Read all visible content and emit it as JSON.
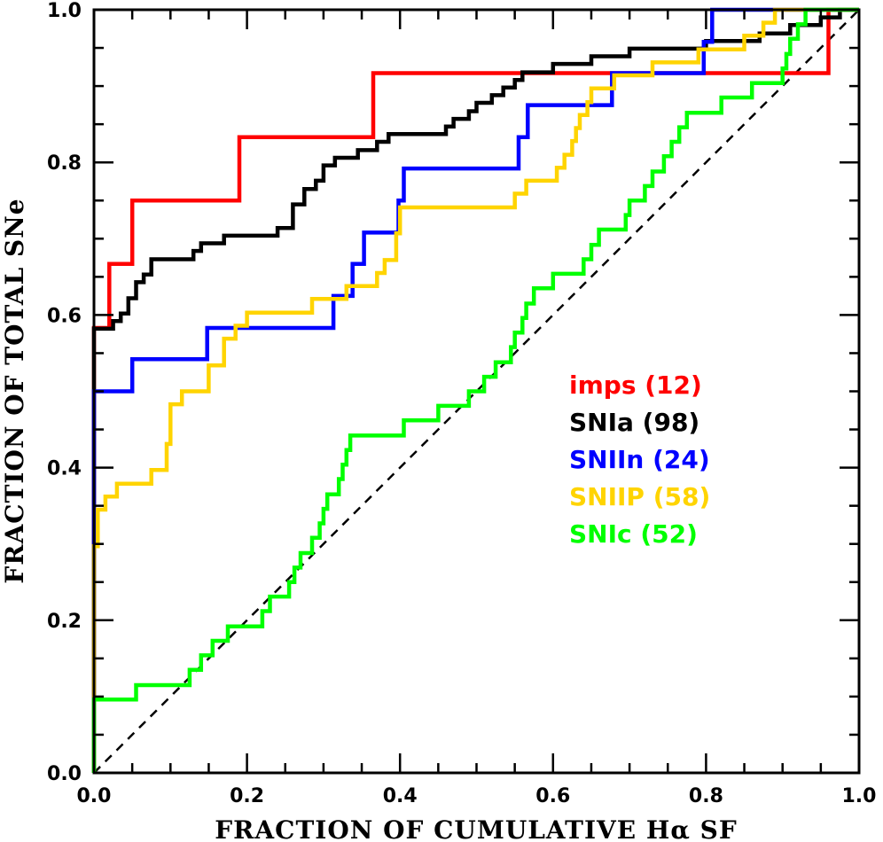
{
  "chart_data": {
    "type": "line",
    "title": "",
    "xlabel": "FRACTION OF CUMULATIVE Hα SF",
    "ylabel": "FRACTION OF TOTAL SNe",
    "xlim": [
      0,
      1
    ],
    "ylim": [
      0,
      1
    ],
    "x_ticks": [
      "0.0",
      "0.2",
      "0.4",
      "0.6",
      "0.8",
      "1.0"
    ],
    "y_ticks": [
      "0.0",
      "0.2",
      "0.4",
      "0.6",
      "0.8",
      "1.0"
    ],
    "grid": false,
    "legend_placement": "right",
    "reference_line": {
      "style": "dashed",
      "color": "#000000",
      "points": [
        [
          0,
          0
        ],
        [
          1,
          1
        ]
      ]
    },
    "series": [
      {
        "name": "imps (12)",
        "color": "#ff0000",
        "points": [
          [
            0,
            0
          ],
          [
            0,
            0.583
          ],
          [
            0.02,
            0.583
          ],
          [
            0.02,
            0.667
          ],
          [
            0.05,
            0.667
          ],
          [
            0.05,
            0.75
          ],
          [
            0.19,
            0.75
          ],
          [
            0.19,
            0.833
          ],
          [
            0.365,
            0.833
          ],
          [
            0.365,
            0.917
          ],
          [
            0.96,
            0.917
          ],
          [
            0.96,
            1.0
          ],
          [
            1.0,
            1.0
          ]
        ]
      },
      {
        "name": "SNIa (98)",
        "color": "#000000",
        "points": [
          [
            0,
            0
          ],
          [
            0,
            0.5
          ],
          [
            0,
            0.582
          ],
          [
            0.025,
            0.582
          ],
          [
            0.025,
            0.592
          ],
          [
            0.035,
            0.592
          ],
          [
            0.035,
            0.602
          ],
          [
            0.045,
            0.602
          ],
          [
            0.045,
            0.622
          ],
          [
            0.055,
            0.622
          ],
          [
            0.055,
            0.643
          ],
          [
            0.065,
            0.643
          ],
          [
            0.065,
            0.653
          ],
          [
            0.075,
            0.653
          ],
          [
            0.075,
            0.673
          ],
          [
            0.13,
            0.673
          ],
          [
            0.13,
            0.684
          ],
          [
            0.14,
            0.684
          ],
          [
            0.14,
            0.694
          ],
          [
            0.17,
            0.694
          ],
          [
            0.17,
            0.704
          ],
          [
            0.24,
            0.704
          ],
          [
            0.24,
            0.714
          ],
          [
            0.26,
            0.714
          ],
          [
            0.26,
            0.745
          ],
          [
            0.275,
            0.745
          ],
          [
            0.275,
            0.765
          ],
          [
            0.29,
            0.765
          ],
          [
            0.29,
            0.776
          ],
          [
            0.3,
            0.776
          ],
          [
            0.3,
            0.796
          ],
          [
            0.315,
            0.796
          ],
          [
            0.315,
            0.806
          ],
          [
            0.345,
            0.806
          ],
          [
            0.345,
            0.816
          ],
          [
            0.37,
            0.816
          ],
          [
            0.37,
            0.827
          ],
          [
            0.385,
            0.827
          ],
          [
            0.385,
            0.837
          ],
          [
            0.46,
            0.837
          ],
          [
            0.46,
            0.847
          ],
          [
            0.47,
            0.847
          ],
          [
            0.47,
            0.857
          ],
          [
            0.49,
            0.857
          ],
          [
            0.49,
            0.867
          ],
          [
            0.5,
            0.867
          ],
          [
            0.5,
            0.878
          ],
          [
            0.52,
            0.878
          ],
          [
            0.52,
            0.888
          ],
          [
            0.535,
            0.888
          ],
          [
            0.535,
            0.898
          ],
          [
            0.55,
            0.898
          ],
          [
            0.55,
            0.908
          ],
          [
            0.56,
            0.908
          ],
          [
            0.56,
            0.918
          ],
          [
            0.6,
            0.918
          ],
          [
            0.6,
            0.929
          ],
          [
            0.65,
            0.929
          ],
          [
            0.65,
            0.939
          ],
          [
            0.7,
            0.939
          ],
          [
            0.7,
            0.949
          ],
          [
            0.8,
            0.949
          ],
          [
            0.8,
            0.959
          ],
          [
            0.87,
            0.959
          ],
          [
            0.87,
            0.969
          ],
          [
            0.91,
            0.969
          ],
          [
            0.91,
            0.98
          ],
          [
            0.95,
            0.98
          ],
          [
            0.95,
            0.99
          ],
          [
            0.975,
            0.99
          ],
          [
            0.975,
            1.0
          ],
          [
            1.0,
            1.0
          ]
        ]
      },
      {
        "name": "SNIIn (24)",
        "color": "#0000ff",
        "points": [
          [
            0,
            0
          ],
          [
            0,
            0.3
          ],
          [
            0,
            0.5
          ],
          [
            0.05,
            0.5
          ],
          [
            0.05,
            0.542
          ],
          [
            0.148,
            0.542
          ],
          [
            0.148,
            0.583
          ],
          [
            0.313,
            0.583
          ],
          [
            0.313,
            0.625
          ],
          [
            0.338,
            0.625
          ],
          [
            0.338,
            0.667
          ],
          [
            0.353,
            0.667
          ],
          [
            0.353,
            0.708
          ],
          [
            0.398,
            0.708
          ],
          [
            0.398,
            0.75
          ],
          [
            0.405,
            0.75
          ],
          [
            0.405,
            0.792
          ],
          [
            0.555,
            0.792
          ],
          [
            0.555,
            0.833
          ],
          [
            0.567,
            0.833
          ],
          [
            0.567,
            0.875
          ],
          [
            0.677,
            0.875
          ],
          [
            0.677,
            0.917
          ],
          [
            0.797,
            0.917
          ],
          [
            0.797,
            0.958
          ],
          [
            0.808,
            0.958
          ],
          [
            0.808,
            1.0
          ],
          [
            1.0,
            1.0
          ]
        ]
      },
      {
        "name": "SNIIP (58)",
        "color": "#ffd400",
        "points": [
          [
            0,
            0
          ],
          [
            0,
            0.1
          ],
          [
            0,
            0.297
          ],
          [
            0.005,
            0.297
          ],
          [
            0.005,
            0.345
          ],
          [
            0.015,
            0.345
          ],
          [
            0.015,
            0.362
          ],
          [
            0.03,
            0.362
          ],
          [
            0.03,
            0.379
          ],
          [
            0.075,
            0.379
          ],
          [
            0.075,
            0.397
          ],
          [
            0.095,
            0.397
          ],
          [
            0.095,
            0.431
          ],
          [
            0.1,
            0.431
          ],
          [
            0.1,
            0.483
          ],
          [
            0.115,
            0.483
          ],
          [
            0.115,
            0.5
          ],
          [
            0.15,
            0.5
          ],
          [
            0.15,
            0.534
          ],
          [
            0.17,
            0.534
          ],
          [
            0.17,
            0.569
          ],
          [
            0.185,
            0.569
          ],
          [
            0.185,
            0.586
          ],
          [
            0.2,
            0.586
          ],
          [
            0.2,
            0.603
          ],
          [
            0.285,
            0.603
          ],
          [
            0.285,
            0.621
          ],
          [
            0.33,
            0.621
          ],
          [
            0.33,
            0.638
          ],
          [
            0.37,
            0.638
          ],
          [
            0.37,
            0.655
          ],
          [
            0.38,
            0.655
          ],
          [
            0.38,
            0.672
          ],
          [
            0.395,
            0.672
          ],
          [
            0.395,
            0.707
          ],
          [
            0.4,
            0.707
          ],
          [
            0.4,
            0.741
          ],
          [
            0.55,
            0.741
          ],
          [
            0.55,
            0.759
          ],
          [
            0.565,
            0.759
          ],
          [
            0.565,
            0.776
          ],
          [
            0.605,
            0.776
          ],
          [
            0.605,
            0.793
          ],
          [
            0.615,
            0.793
          ],
          [
            0.615,
            0.81
          ],
          [
            0.625,
            0.81
          ],
          [
            0.625,
            0.828
          ],
          [
            0.63,
            0.828
          ],
          [
            0.63,
            0.845
          ],
          [
            0.635,
            0.845
          ],
          [
            0.635,
            0.862
          ],
          [
            0.645,
            0.862
          ],
          [
            0.645,
            0.879
          ],
          [
            0.65,
            0.879
          ],
          [
            0.65,
            0.897
          ],
          [
            0.68,
            0.897
          ],
          [
            0.68,
            0.914
          ],
          [
            0.73,
            0.914
          ],
          [
            0.73,
            0.931
          ],
          [
            0.79,
            0.931
          ],
          [
            0.79,
            0.948
          ],
          [
            0.85,
            0.948
          ],
          [
            0.85,
            0.966
          ],
          [
            0.875,
            0.966
          ],
          [
            0.875,
            0.983
          ],
          [
            0.89,
            0.983
          ],
          [
            0.89,
            1.0
          ],
          [
            1.0,
            1.0
          ]
        ]
      },
      {
        "name": "SNIc (52)",
        "color": "#00ff00",
        "points": [
          [
            0,
            0
          ],
          [
            0,
            0.096
          ],
          [
            0.055,
            0.096
          ],
          [
            0.055,
            0.115
          ],
          [
            0.125,
            0.115
          ],
          [
            0.125,
            0.135
          ],
          [
            0.14,
            0.135
          ],
          [
            0.14,
            0.154
          ],
          [
            0.155,
            0.154
          ],
          [
            0.155,
            0.173
          ],
          [
            0.175,
            0.173
          ],
          [
            0.175,
            0.192
          ],
          [
            0.22,
            0.192
          ],
          [
            0.22,
            0.212
          ],
          [
            0.23,
            0.212
          ],
          [
            0.23,
            0.231
          ],
          [
            0.255,
            0.231
          ],
          [
            0.255,
            0.25
          ],
          [
            0.262,
            0.25
          ],
          [
            0.262,
            0.269
          ],
          [
            0.27,
            0.269
          ],
          [
            0.27,
            0.288
          ],
          [
            0.285,
            0.288
          ],
          [
            0.285,
            0.308
          ],
          [
            0.295,
            0.308
          ],
          [
            0.295,
            0.327
          ],
          [
            0.3,
            0.327
          ],
          [
            0.3,
            0.346
          ],
          [
            0.305,
            0.346
          ],
          [
            0.305,
            0.365
          ],
          [
            0.32,
            0.365
          ],
          [
            0.32,
            0.385
          ],
          [
            0.325,
            0.385
          ],
          [
            0.325,
            0.404
          ],
          [
            0.33,
            0.404
          ],
          [
            0.33,
            0.423
          ],
          [
            0.335,
            0.423
          ],
          [
            0.335,
            0.442
          ],
          [
            0.405,
            0.442
          ],
          [
            0.405,
            0.462
          ],
          [
            0.45,
            0.462
          ],
          [
            0.45,
            0.481
          ],
          [
            0.49,
            0.481
          ],
          [
            0.49,
            0.5
          ],
          [
            0.51,
            0.5
          ],
          [
            0.51,
            0.519
          ],
          [
            0.525,
            0.519
          ],
          [
            0.525,
            0.538
          ],
          [
            0.545,
            0.538
          ],
          [
            0.545,
            0.558
          ],
          [
            0.55,
            0.558
          ],
          [
            0.55,
            0.577
          ],
          [
            0.56,
            0.577
          ],
          [
            0.56,
            0.596
          ],
          [
            0.565,
            0.596
          ],
          [
            0.565,
            0.615
          ],
          [
            0.575,
            0.615
          ],
          [
            0.575,
            0.635
          ],
          [
            0.6,
            0.635
          ],
          [
            0.6,
            0.654
          ],
          [
            0.64,
            0.654
          ],
          [
            0.64,
            0.673
          ],
          [
            0.65,
            0.673
          ],
          [
            0.65,
            0.692
          ],
          [
            0.66,
            0.692
          ],
          [
            0.66,
            0.712
          ],
          [
            0.695,
            0.712
          ],
          [
            0.695,
            0.731
          ],
          [
            0.7,
            0.731
          ],
          [
            0.7,
            0.75
          ],
          [
            0.72,
            0.75
          ],
          [
            0.72,
            0.769
          ],
          [
            0.73,
            0.769
          ],
          [
            0.73,
            0.788
          ],
          [
            0.745,
            0.788
          ],
          [
            0.745,
            0.808
          ],
          [
            0.755,
            0.808
          ],
          [
            0.755,
            0.827
          ],
          [
            0.765,
            0.827
          ],
          [
            0.765,
            0.846
          ],
          [
            0.775,
            0.846
          ],
          [
            0.775,
            0.865
          ],
          [
            0.82,
            0.865
          ],
          [
            0.82,
            0.885
          ],
          [
            0.86,
            0.885
          ],
          [
            0.86,
            0.904
          ],
          [
            0.9,
            0.904
          ],
          [
            0.9,
            0.923
          ],
          [
            0.905,
            0.923
          ],
          [
            0.905,
            0.942
          ],
          [
            0.91,
            0.942
          ],
          [
            0.91,
            0.962
          ],
          [
            0.92,
            0.962
          ],
          [
            0.92,
            0.981
          ],
          [
            0.93,
            0.981
          ],
          [
            0.93,
            1.0
          ],
          [
            1.0,
            1.0
          ]
        ]
      }
    ]
  }
}
